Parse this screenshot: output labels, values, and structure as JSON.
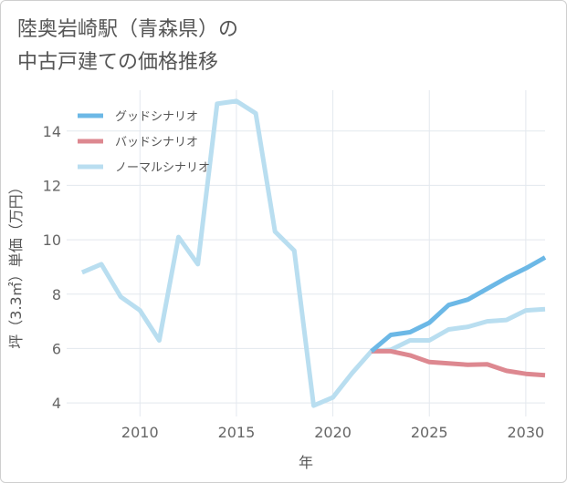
{
  "title_lines": [
    "陸奥岩崎駅（青森県）の",
    "中古戸建ての価格推移"
  ],
  "chart_data": {
    "type": "line",
    "xlabel": "年",
    "ylabel": "坪（3.3㎡）単価（万円）",
    "xlim": [
      2006.2,
      2031
    ],
    "ylim": [
      3.5,
      15.5
    ],
    "xticks": [
      2010,
      2015,
      2020,
      2025,
      2030
    ],
    "yticks": [
      4,
      6,
      8,
      10,
      12,
      14
    ],
    "legend_position": "top-left",
    "series": [
      {
        "name": "グッドシナリオ",
        "color": "#6cb8e6",
        "x": [
          2022,
          2023,
          2024,
          2025,
          2026,
          2027,
          2028,
          2029,
          2030,
          2031
        ],
        "values": [
          5.9,
          6.5,
          6.6,
          6.95,
          7.6,
          7.8,
          8.2,
          8.6,
          8.95,
          9.35
        ]
      },
      {
        "name": "バッドシナリオ",
        "color": "#dd8890",
        "x": [
          2022,
          2023,
          2024,
          2025,
          2026,
          2027,
          2028,
          2029,
          2030,
          2031
        ],
        "values": [
          5.9,
          5.9,
          5.75,
          5.5,
          5.45,
          5.4,
          5.42,
          5.18,
          5.07,
          5.02
        ]
      },
      {
        "name": "ノーマルシナリオ",
        "color": "#b9def0",
        "x": [
          2007,
          2008,
          2009,
          2010,
          2011,
          2012,
          2013,
          2014,
          2015,
          2016,
          2017,
          2018,
          2019,
          2020,
          2021,
          2022,
          2023,
          2024,
          2025,
          2026,
          2027,
          2028,
          2029,
          2030,
          2031
        ],
        "values": [
          8.8,
          9.1,
          7.9,
          7.4,
          6.3,
          10.1,
          9.1,
          15.0,
          15.1,
          14.65,
          10.3,
          9.6,
          3.9,
          4.2,
          5.1,
          5.9,
          5.95,
          6.3,
          6.3,
          6.7,
          6.8,
          7.0,
          7.05,
          7.4,
          7.45
        ]
      }
    ]
  }
}
